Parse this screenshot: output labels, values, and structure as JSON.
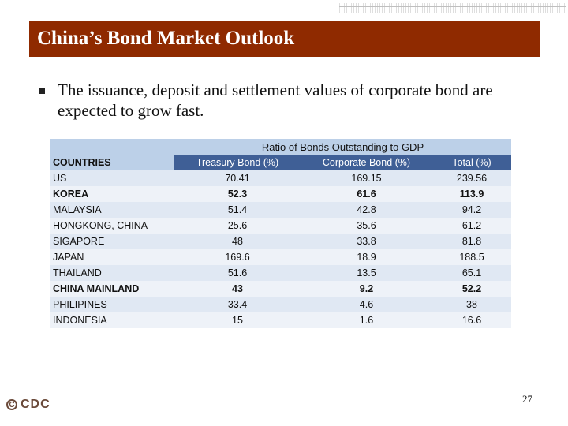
{
  "slide": {
    "title": "China’s Bond Market Outlook",
    "bullet": "The issuance, deposit and settlement values of corporate bond are expected to grow fast.",
    "page_number": "27",
    "logo": {
      "symbol": "C",
      "text": "CDC"
    }
  },
  "table": {
    "group_header": "Ratio of Bonds Outstanding to GDP",
    "columns": [
      "COUNTRIES",
      "Treasury Bond (%)",
      "Corporate Bond (%)",
      "Total (%)"
    ],
    "rows": [
      {
        "country": "US",
        "treasury": "70.41",
        "corporate": "169.15",
        "total": "239.56",
        "bold": false
      },
      {
        "country": "KOREA",
        "treasury": "52.3",
        "corporate": "61.6",
        "total": "113.9",
        "bold": true
      },
      {
        "country": "MALAYSIA",
        "treasury": "51.4",
        "corporate": "42.8",
        "total": "94.2",
        "bold": false
      },
      {
        "country": "HONGKONG, CHINA",
        "treasury": "25.6",
        "corporate": "35.6",
        "total": "61.2",
        "bold": false
      },
      {
        "country": "SIGAPORE",
        "treasury": "48",
        "corporate": "33.8",
        "total": "81.8",
        "bold": false
      },
      {
        "country": "JAPAN",
        "treasury": "169.6",
        "corporate": "18.9",
        "total": "188.5",
        "bold": false
      },
      {
        "country": "THAILAND",
        "treasury": "51.6",
        "corporate": "13.5",
        "total": "65.1",
        "bold": false
      },
      {
        "country": "CHINA MAINLAND",
        "treasury": "43",
        "corporate": "9.2",
        "total": "52.2",
        "bold": true
      },
      {
        "country": "PHILIPINES",
        "treasury": "33.4",
        "corporate": "4.6",
        "total": "38",
        "bold": false
      },
      {
        "country": "INDONESIA",
        "treasury": "15",
        "corporate": "1.6",
        "total": "16.6",
        "bold": false
      }
    ]
  }
}
